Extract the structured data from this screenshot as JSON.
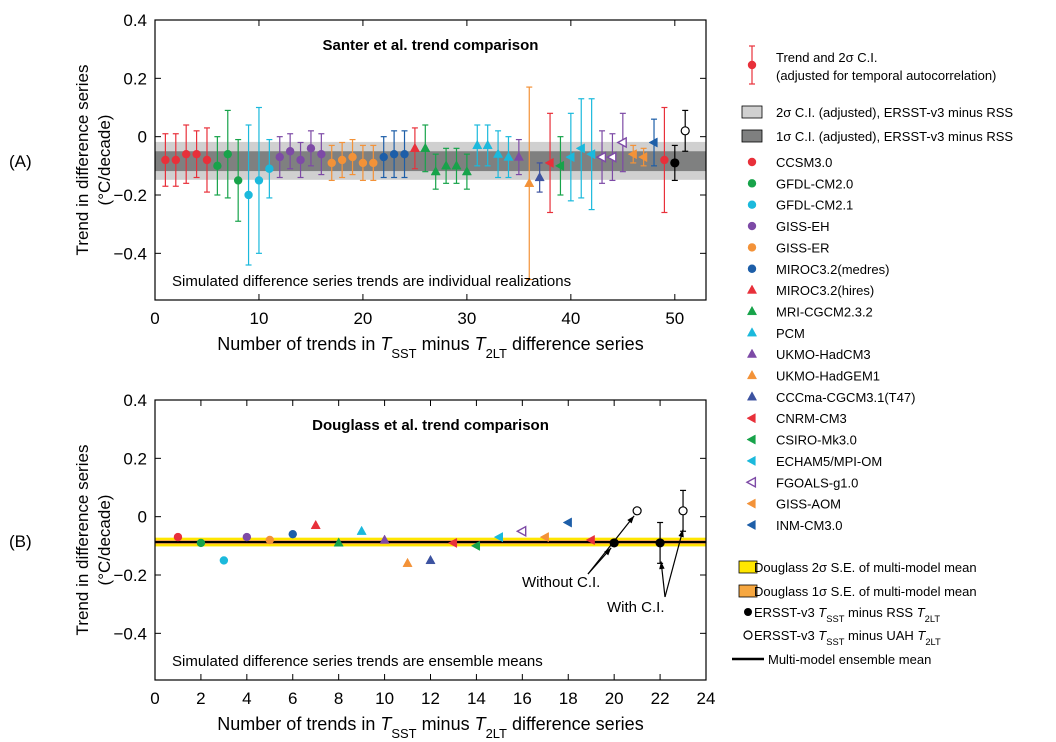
{
  "chart_data": [
    {
      "panel_label": "(A)",
      "type": "scatter",
      "title": "Santer et al. trend comparison",
      "annotation": "Simulated difference series trends are individual realizations",
      "xlabel": {
        "pre": "Number of trends in ",
        "t1": "T",
        "s1": "SST",
        "mid": " minus ",
        "t2": "T",
        "s2": "2LT",
        "post": " difference series"
      },
      "ylabel": [
        "Trend in difference series",
        "(°C/decade)"
      ],
      "xlim": [
        0,
        53
      ],
      "ylim": [
        -0.56,
        0.4
      ],
      "xticks": [
        0,
        10,
        20,
        30,
        40,
        50
      ],
      "xtick_labels": [
        "0",
        "10",
        "20",
        "30",
        "40",
        "50"
      ],
      "yticks": [
        -0.4,
        -0.2,
        0,
        0.2,
        0.4
      ],
      "ytick_labels": [
        "−0.4",
        "−0.2",
        "0",
        "0.2",
        "0.4"
      ],
      "bands": [
        {
          "name": "2σ C.I. (adjusted), ERSST-v3 minus RSS",
          "y0": -0.148,
          "y1": -0.018,
          "color": "#d0d0d0"
        },
        {
          "name": "1σ C.I. (adjusted), ERSST-v3 minus RSS",
          "y0": -0.118,
          "y1": -0.05,
          "color": "#7f8080"
        }
      ],
      "points": [
        {
          "x": 1,
          "y": -0.08,
          "err": 0.09,
          "model": "CCSM3.0"
        },
        {
          "x": 2,
          "y": -0.08,
          "err": 0.09,
          "model": "CCSM3.0"
        },
        {
          "x": 3,
          "y": -0.06,
          "err": 0.1,
          "model": "CCSM3.0"
        },
        {
          "x": 4,
          "y": -0.06,
          "err": 0.08,
          "model": "CCSM3.0"
        },
        {
          "x": 5,
          "y": -0.08,
          "err": 0.11,
          "model": "CCSM3.0"
        },
        {
          "x": 6,
          "y": -0.1,
          "err": 0.1,
          "model": "GFDL-CM2.0"
        },
        {
          "x": 7,
          "y": -0.06,
          "err": 0.15,
          "model": "GFDL-CM2.0"
        },
        {
          "x": 8,
          "y": -0.15,
          "err": 0.14,
          "model": "GFDL-CM2.0"
        },
        {
          "x": 9,
          "y": -0.2,
          "err": 0.24,
          "model": "GFDL-CM2.1"
        },
        {
          "x": 10,
          "y": -0.15,
          "err": 0.25,
          "model": "GFDL-CM2.1"
        },
        {
          "x": 11,
          "y": -0.11,
          "err": 0.1,
          "model": "GFDL-CM2.1"
        },
        {
          "x": 12,
          "y": -0.07,
          "err": 0.07,
          "model": "GISS-EH"
        },
        {
          "x": 13,
          "y": -0.05,
          "err": 0.06,
          "model": "GISS-EH"
        },
        {
          "x": 14,
          "y": -0.08,
          "err": 0.06,
          "model": "GISS-EH"
        },
        {
          "x": 15,
          "y": -0.04,
          "err": 0.06,
          "model": "GISS-EH"
        },
        {
          "x": 16,
          "y": -0.06,
          "err": 0.07,
          "model": "GISS-EH"
        },
        {
          "x": 17,
          "y": -0.09,
          "err": 0.06,
          "model": "GISS-ER"
        },
        {
          "x": 18,
          "y": -0.08,
          "err": 0.06,
          "model": "GISS-ER"
        },
        {
          "x": 19,
          "y": -0.07,
          "err": 0.06,
          "model": "GISS-ER"
        },
        {
          "x": 20,
          "y": -0.09,
          "err": 0.06,
          "model": "GISS-ER"
        },
        {
          "x": 21,
          "y": -0.09,
          "err": 0.06,
          "model": "GISS-ER"
        },
        {
          "x": 22,
          "y": -0.07,
          "err": 0.07,
          "model": "MIROC3.2(medres)"
        },
        {
          "x": 23,
          "y": -0.06,
          "err": 0.08,
          "model": "MIROC3.2(medres)"
        },
        {
          "x": 24,
          "y": -0.06,
          "err": 0.08,
          "model": "MIROC3.2(medres)"
        },
        {
          "x": 25,
          "y": -0.04,
          "err": 0.07,
          "model": "MIROC3.2(hires)"
        },
        {
          "x": 26,
          "y": -0.04,
          "err": 0.08,
          "model": "MRI-CGCM2.3.2"
        },
        {
          "x": 27,
          "y": -0.12,
          "err": 0.06,
          "model": "MRI-CGCM2.3.2"
        },
        {
          "x": 28,
          "y": -0.1,
          "err": 0.06,
          "model": "MRI-CGCM2.3.2"
        },
        {
          "x": 29,
          "y": -0.1,
          "err": 0.06,
          "model": "MRI-CGCM2.3.2"
        },
        {
          "x": 30,
          "y": -0.12,
          "err": 0.06,
          "model": "MRI-CGCM2.3.2"
        },
        {
          "x": 31,
          "y": -0.03,
          "err": 0.07,
          "model": "PCM"
        },
        {
          "x": 32,
          "y": -0.03,
          "err": 0.07,
          "model": "PCM"
        },
        {
          "x": 33,
          "y": -0.06,
          "err": 0.08,
          "model": "PCM"
        },
        {
          "x": 34,
          "y": -0.07,
          "err": 0.07,
          "model": "PCM"
        },
        {
          "x": 35,
          "y": -0.07,
          "err": 0.06,
          "model": "UKMO-HadCM3"
        },
        {
          "x": 36,
          "y": -0.16,
          "err": 0.33,
          "model": "UKMO-HadGEM1"
        },
        {
          "x": 37,
          "y": -0.14,
          "err": 0.05,
          "model": "CCCma-CGCM3.1(T47)"
        },
        {
          "x": 38,
          "y": -0.09,
          "err": 0.17,
          "model": "CNRM-CM3"
        },
        {
          "x": 39,
          "y": -0.1,
          "err": 0.1,
          "model": "CSIRO-Mk3.0"
        },
        {
          "x": 40,
          "y": -0.07,
          "err": 0.15,
          "model": "ECHAM5/MPI-OM"
        },
        {
          "x": 41,
          "y": -0.04,
          "err": 0.17,
          "model": "ECHAM5/MPI-OM"
        },
        {
          "x": 42,
          "y": -0.06,
          "err": 0.19,
          "model": "ECHAM5/MPI-OM"
        },
        {
          "x": 43,
          "y": -0.07,
          "err": 0.09,
          "model": "FGOALS-g1.0"
        },
        {
          "x": 44,
          "y": -0.07,
          "err": 0.08,
          "model": "FGOALS-g1.0"
        },
        {
          "x": 45,
          "y": -0.02,
          "err": 0.1,
          "model": "FGOALS-g1.0"
        },
        {
          "x": 46,
          "y": -0.06,
          "err": 0.03,
          "model": "GISS-AOM"
        },
        {
          "x": 47,
          "y": -0.07,
          "err": 0.03,
          "model": "GISS-AOM"
        },
        {
          "x": 48,
          "y": -0.02,
          "err": 0.08,
          "model": "INM-CM3.0"
        },
        {
          "x": 49,
          "y": -0.08,
          "err": 0.18,
          "model": "CCSM3.0"
        }
      ],
      "observations": [
        {
          "x": 50,
          "y": -0.09,
          "err": 0.06,
          "filled": true
        },
        {
          "x": 51,
          "y": 0.02,
          "err": 0.07,
          "filled": false
        }
      ]
    },
    {
      "panel_label": "(B)",
      "type": "scatter",
      "title": "Douglass et al. trend comparison",
      "annotation": "Simulated difference series trends are ensemble means",
      "xlabel": {
        "pre": "Number of trends in ",
        "t1": "T",
        "s1": "SST",
        "mid": " minus ",
        "t2": "T",
        "s2": "2LT",
        "post": " difference series"
      },
      "ylabel": [
        "Trend in difference series",
        "(°C/decade)"
      ],
      "xlim": [
        0,
        24
      ],
      "ylim": [
        -0.56,
        0.4
      ],
      "xticks": [
        0,
        2,
        4,
        6,
        8,
        10,
        12,
        14,
        16,
        18,
        20,
        22,
        24
      ],
      "xtick_labels": [
        "0",
        "2",
        "4",
        "6",
        "8",
        "10",
        "12",
        "14",
        "16",
        "18",
        "20",
        "22",
        "24"
      ],
      "yticks": [
        -0.4,
        -0.2,
        0,
        0.2,
        0.4
      ],
      "ytick_labels": [
        "−0.4",
        "−0.2",
        "0",
        "0.2",
        "0.4"
      ],
      "bands": [
        {
          "name": "Douglass 2σ S.E. of multi-model mean",
          "y0": -0.102,
          "y1": -0.072,
          "color": "#ffe600"
        },
        {
          "name": "Douglass 1σ S.E. of multi-model mean",
          "y0": -0.094,
          "y1": -0.08,
          "color": "#f6a740"
        }
      ],
      "mean_line": -0.087,
      "points": [
        {
          "x": 1,
          "y": -0.07,
          "model": "CCSM3.0"
        },
        {
          "x": 2,
          "y": -0.09,
          "model": "GFDL-CM2.0"
        },
        {
          "x": 3,
          "y": -0.15,
          "model": "GFDL-CM2.1"
        },
        {
          "x": 4,
          "y": -0.07,
          "model": "GISS-EH"
        },
        {
          "x": 5,
          "y": -0.08,
          "model": "GISS-ER"
        },
        {
          "x": 6,
          "y": -0.06,
          "model": "MIROC3.2(medres)"
        },
        {
          "x": 7,
          "y": -0.03,
          "model": "MIROC3.2(hires)"
        },
        {
          "x": 8,
          "y": -0.09,
          "model": "MRI-CGCM2.3.2"
        },
        {
          "x": 9,
          "y": -0.05,
          "model": "PCM"
        },
        {
          "x": 10,
          "y": -0.08,
          "model": "UKMO-HadCM3"
        },
        {
          "x": 11,
          "y": -0.16,
          "model": "UKMO-HadGEM1"
        },
        {
          "x": 12,
          "y": -0.15,
          "model": "CCCma-CGCM3.1(T47)"
        },
        {
          "x": 13,
          "y": -0.09,
          "model": "CNRM-CM3"
        },
        {
          "x": 14,
          "y": -0.1,
          "model": "CSIRO-Mk3.0"
        },
        {
          "x": 15,
          "y": -0.07,
          "model": "ECHAM5/MPI-OM"
        },
        {
          "x": 16,
          "y": -0.05,
          "model": "FGOALS-g1.0"
        },
        {
          "x": 17,
          "y": -0.07,
          "model": "GISS-AOM"
        },
        {
          "x": 18,
          "y": -0.02,
          "model": "INM-CM3.0"
        },
        {
          "x": 19,
          "y": -0.08,
          "model": "CNRM-CM3"
        }
      ],
      "observations": [
        {
          "x": 20,
          "y": -0.09,
          "filled": true
        },
        {
          "x": 21,
          "y": 0.02,
          "filled": false
        },
        {
          "x": 22,
          "y": -0.09,
          "err": 0.07,
          "filled": true
        },
        {
          "x": 23,
          "y": 0.02,
          "err": 0.07,
          "filled": false
        }
      ],
      "callouts": {
        "without_ci": "Without C.I.",
        "with_ci": "With C.I."
      }
    }
  ],
  "models": [
    {
      "name": "CCSM3.0",
      "color": "#e8303a",
      "marker": "circle"
    },
    {
      "name": "GFDL-CM2.0",
      "color": "#17a34a",
      "marker": "circle"
    },
    {
      "name": "GFDL-CM2.1",
      "color": "#1bb9dc",
      "marker": "circle"
    },
    {
      "name": "GISS-EH",
      "color": "#7d4aa6",
      "marker": "circle"
    },
    {
      "name": "GISS-ER",
      "color": "#f39238",
      "marker": "circle"
    },
    {
      "name": "MIROC3.2(medres)",
      "color": "#1d5ea8",
      "marker": "circle"
    },
    {
      "name": "MIROC3.2(hires)",
      "color": "#e8303a",
      "marker": "tri-up"
    },
    {
      "name": "MRI-CGCM2.3.2",
      "color": "#17a34a",
      "marker": "tri-up"
    },
    {
      "name": "PCM",
      "color": "#1bb9dc",
      "marker": "tri-up"
    },
    {
      "name": "UKMO-HadCM3",
      "color": "#7d4aa6",
      "marker": "tri-up"
    },
    {
      "name": "UKMO-HadGEM1",
      "color": "#f39238",
      "marker": "tri-up"
    },
    {
      "name": "CCCma-CGCM3.1(T47)",
      "color": "#3c52a0",
      "marker": "tri-up"
    },
    {
      "name": "CNRM-CM3",
      "color": "#e8303a",
      "marker": "tri-left"
    },
    {
      "name": "CSIRO-Mk3.0",
      "color": "#17a34a",
      "marker": "tri-left"
    },
    {
      "name": "ECHAM5/MPI-OM",
      "color": "#1bb9dc",
      "marker": "tri-left"
    },
    {
      "name": "FGOALS-g1.0",
      "color": "#7d4aa6",
      "marker": "tri-left-open"
    },
    {
      "name": "GISS-AOM",
      "color": "#f39238",
      "marker": "tri-left"
    },
    {
      "name": "INM-CM3.0",
      "color": "#1d5ea8",
      "marker": "tri-left"
    }
  ],
  "legend": {
    "trend_ci_line1": "Trend and 2σ  C.I.",
    "trend_ci_line2": "(adjusted for temporal autocorrelation)",
    "band2": "2σ C.I. (adjusted), ERSST-v3 minus RSS",
    "band1": "1σ C.I. (adjusted), ERSST-v3 minus RSS",
    "douglass2": "Douglass 2σ S.E. of multi-model mean",
    "douglass1": "Douglass 1σ S.E. of multi-model mean",
    "obs_rss": {
      "pre": "ERSST-v3 ",
      "t1": "T",
      "s1": "SST",
      "mid": " minus RSS ",
      "t2": "T",
      "s2": "2LT"
    },
    "obs_uah": {
      "pre": "ERSST-v3 ",
      "t1": "T",
      "s1": "SST",
      "mid": " minus UAH ",
      "t2": "T",
      "s2": "2LT"
    },
    "mean_line": "Multi-model ensemble mean"
  },
  "colors": {
    "error_bar_default": "#e8303a",
    "observation": "#000000"
  }
}
